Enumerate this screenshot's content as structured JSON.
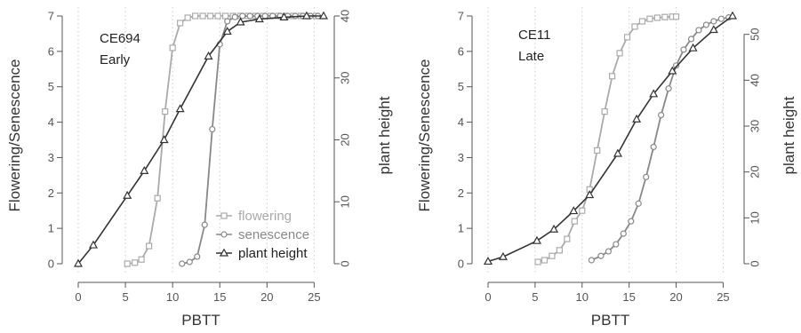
{
  "chart_data": [
    {
      "type": "line",
      "annotation": [
        "CE694",
        "Early"
      ],
      "xlabel": "PBTT",
      "ylabel": "Flowering/Senescence",
      "y2label": "plant height",
      "xlim": [
        0,
        26
      ],
      "xticks": [
        0,
        5,
        10,
        15,
        20,
        25
      ],
      "ylim": [
        0,
        7
      ],
      "yticks": [
        0,
        1,
        2,
        3,
        4,
        5,
        6,
        7
      ],
      "y2lim": [
        0,
        40
      ],
      "y2ticks": [
        0,
        10,
        20,
        30,
        40
      ],
      "grid": "vertical dotted",
      "legend": "bottom-right",
      "series": [
        {
          "name": "flowering",
          "axis": "left",
          "marker": "square",
          "color": "#aaaaaa",
          "x": [
            5.2,
            6,
            6.7,
            7.5,
            8.4,
            9.2,
            10,
            10.8,
            11.6,
            12.4,
            13.2,
            14,
            14.8,
            15.6,
            16.4,
            17.2,
            18,
            18.8,
            19.6,
            20.4,
            21.2,
            22,
            22.8,
            23.6,
            24.4,
            25.2
          ],
          "y": [
            0.0,
            0.03,
            0.12,
            0.5,
            1.85,
            4.3,
            6.1,
            6.8,
            6.95,
            7,
            7,
            7,
            7,
            7,
            7,
            7,
            7,
            7,
            7,
            7,
            7,
            7,
            7,
            7,
            7,
            7
          ]
        },
        {
          "name": "senescence",
          "axis": "left",
          "marker": "circle",
          "color": "#888888",
          "x": [
            11,
            11.8,
            12.6,
            13.4,
            14.2,
            15,
            15.8,
            16.6,
            17.4,
            18.2,
            19,
            19.8,
            20.6,
            21.4,
            22.2,
            23,
            23.8,
            24.6,
            25.4
          ],
          "y": [
            0.0,
            0.05,
            0.2,
            1.1,
            3.8,
            6.2,
            6.85,
            6.97,
            7,
            7,
            7,
            7,
            7,
            7,
            7,
            7,
            7,
            7,
            7
          ]
        },
        {
          "name": "plant height",
          "axis": "right",
          "marker": "triangle",
          "color": "#333333",
          "x": [
            0,
            1.6,
            5.2,
            7,
            9.1,
            10.8,
            13.8,
            15.8,
            17.2,
            19.2,
            21.8,
            24.2,
            26
          ],
          "y": [
            0,
            3,
            11,
            15,
            20,
            25,
            33.5,
            37.5,
            39,
            39.5,
            39.8,
            40,
            40
          ]
        }
      ]
    },
    {
      "type": "line",
      "annotation": [
        "CE11",
        "Late"
      ],
      "xlabel": "PBTT",
      "ylabel": "Flowering/Senescence",
      "y2label": "plant height",
      "xlim": [
        0,
        26
      ],
      "xticks": [
        0,
        5,
        10,
        15,
        20,
        25
      ],
      "ylim": [
        0,
        7
      ],
      "yticks": [
        0,
        1,
        2,
        3,
        4,
        5,
        6,
        7
      ],
      "y2lim": [
        0,
        54
      ],
      "y2ticks": [
        0,
        10,
        20,
        30,
        40,
        50
      ],
      "grid": "vertical dotted",
      "series": [
        {
          "name": "flowering",
          "axis": "left",
          "marker": "square",
          "color": "#aaaaaa",
          "x": [
            5.3,
            6,
            6.8,
            7.6,
            8.4,
            9.2,
            10,
            10.8,
            11.6,
            12.4,
            13.2,
            14,
            14.8,
            15.6,
            16.4,
            17.2,
            18,
            18.8,
            19.6,
            20
          ],
          "y": [
            0.05,
            0.1,
            0.22,
            0.38,
            0.7,
            1.2,
            1.5,
            2.1,
            3.2,
            4.3,
            5.3,
            5.95,
            6.4,
            6.7,
            6.85,
            6.92,
            6.95,
            6.97,
            6.98,
            6.98
          ]
        },
        {
          "name": "senescence",
          "axis": "left",
          "marker": "circle",
          "color": "#888888",
          "x": [
            11,
            12,
            12.8,
            13.6,
            14.4,
            15.2,
            16,
            16.8,
            17.6,
            18.4,
            19.2,
            20,
            20.8,
            21.6,
            22.4,
            23.2,
            24,
            24.8,
            25.6
          ],
          "y": [
            0.1,
            0.22,
            0.35,
            0.55,
            0.85,
            1.2,
            1.7,
            2.45,
            3.3,
            4.2,
            4.95,
            5.6,
            6.05,
            6.35,
            6.6,
            6.75,
            6.85,
            6.92,
            6.96
          ]
        },
        {
          "name": "plant height",
          "axis": "right",
          "marker": "triangle",
          "color": "#333333",
          "x": [
            0,
            1.6,
            5.2,
            7,
            9.1,
            10.8,
            13.8,
            15.8,
            17.6,
            19.6,
            21.8,
            24,
            26
          ],
          "y": [
            0.5,
            1.5,
            5,
            7.5,
            11.5,
            15,
            24,
            31.5,
            37,
            42,
            47,
            51,
            54
          ]
        }
      ]
    }
  ]
}
